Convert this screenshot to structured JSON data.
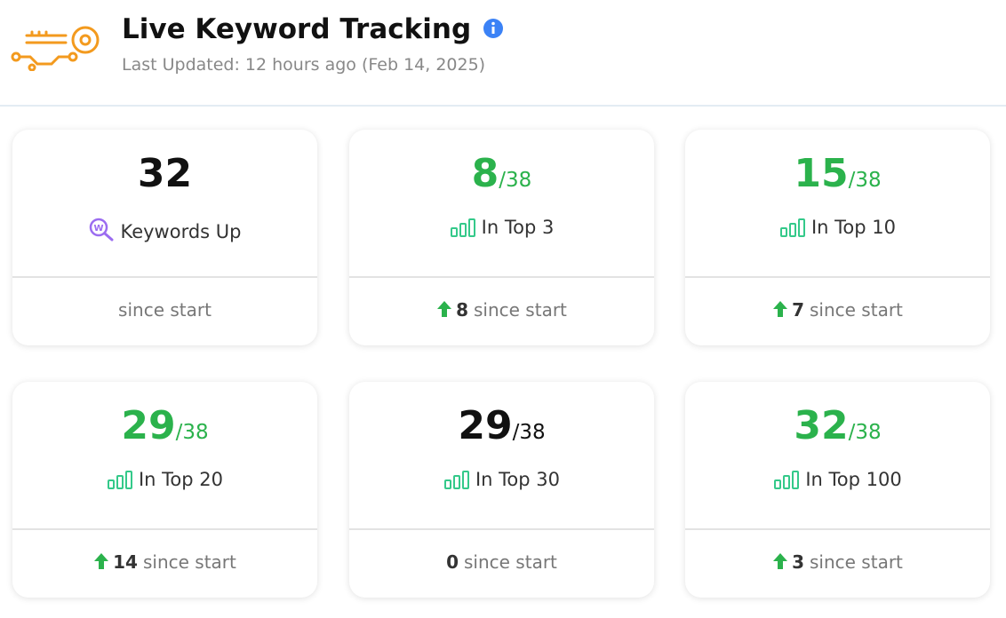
{
  "header": {
    "title": "Live Keyword Tracking",
    "subtitle": "Last Updated: 12 hours ago (Feb 14, 2025)"
  },
  "cards": [
    {
      "value": 32,
      "value_color": "#111111",
      "icon": "search",
      "label": "Keywords Up",
      "trend": "none",
      "footer": "since start"
    },
    {
      "value": 8,
      "total": "/38",
      "value_color": "#2bb24c",
      "icon": "bars",
      "label": "In Top 3",
      "trend": "up",
      "change": 8,
      "footer": "since start"
    },
    {
      "value": 15,
      "total": "/38",
      "value_color": "#2bb24c",
      "icon": "bars",
      "label": "In Top 10",
      "trend": "up",
      "change": 7,
      "footer": "since start"
    },
    {
      "value": 29,
      "total": "/38",
      "value_color": "#2bb24c",
      "icon": "bars",
      "label": "In Top 20",
      "trend": "up",
      "change": 14,
      "footer": "since start"
    },
    {
      "value": 29,
      "total": "/38",
      "value_color": "#111111",
      "icon": "bars",
      "label": "In Top 30",
      "trend": "none",
      "change": 0,
      "footer": "since start"
    },
    {
      "value": 32,
      "total": "/38",
      "value_color": "#2bb24c",
      "icon": "bars",
      "label": "In Top 100",
      "trend": "up",
      "change": 3,
      "footer": "since start"
    }
  ]
}
